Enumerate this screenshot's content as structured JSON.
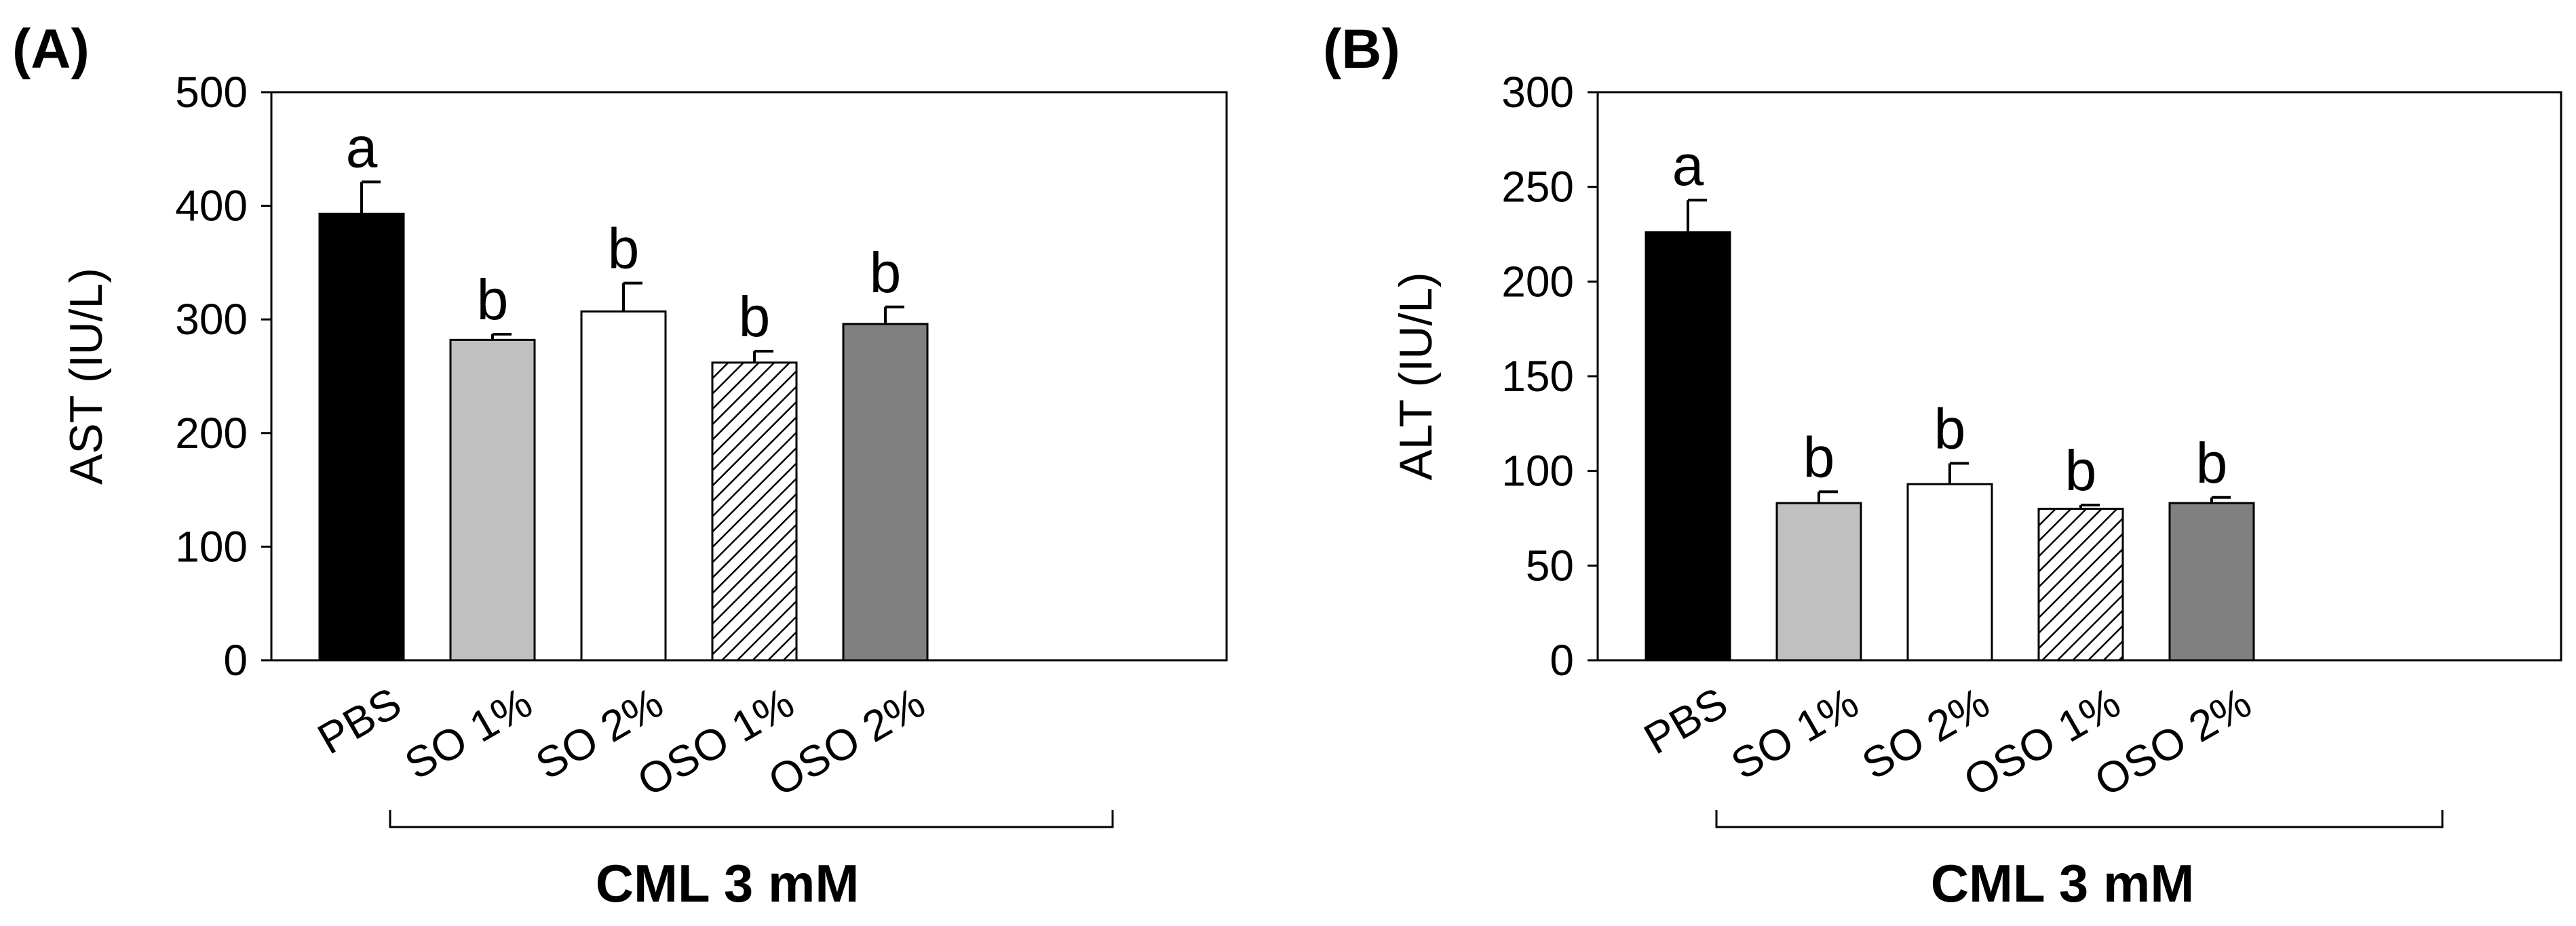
{
  "chart_data": [
    {
      "type": "bar",
      "panel_label": "(A)",
      "categories": [
        "PBS",
        "SO 1%",
        "SO 2%",
        "OSO 1%",
        "OSO 2%"
      ],
      "values": [
        393,
        282,
        307,
        262,
        296
      ],
      "errors": [
        28,
        5,
        25,
        10,
        15
      ],
      "significance": [
        "a",
        "b",
        "b",
        "b",
        "b"
      ],
      "ylabel": "AST (IU/L)",
      "xlabel": "",
      "ylim": [
        0,
        500
      ],
      "yticks": [
        0,
        100,
        200,
        300,
        400,
        500
      ],
      "group_label": "CML 3 mM",
      "bar_styles": [
        "black",
        "lightgray",
        "white",
        "hatched",
        "darkgray"
      ]
    },
    {
      "type": "bar",
      "panel_label": "(B)",
      "categories": [
        "PBS",
        "SO 1%",
        "SO 2%",
        "OSO 1%",
        "OSO 2%"
      ],
      "values": [
        226,
        83,
        93,
        80,
        83
      ],
      "errors": [
        17,
        6,
        11,
        2,
        3
      ],
      "significance": [
        "a",
        "b",
        "b",
        "b",
        "b"
      ],
      "ylabel": "ALT (IU/L)",
      "xlabel": "",
      "ylim": [
        0,
        300
      ],
      "yticks": [
        0,
        50,
        100,
        150,
        200,
        250,
        300
      ],
      "group_label": "CML 3 mM",
      "bar_styles": [
        "black",
        "lightgray",
        "white",
        "hatched",
        "darkgray"
      ]
    }
  ],
  "colors": {
    "black": "#000000",
    "lightgray": "#c0c0c0",
    "white": "#ffffff",
    "hatched": "#ffffff",
    "darkgray": "#808080"
  }
}
